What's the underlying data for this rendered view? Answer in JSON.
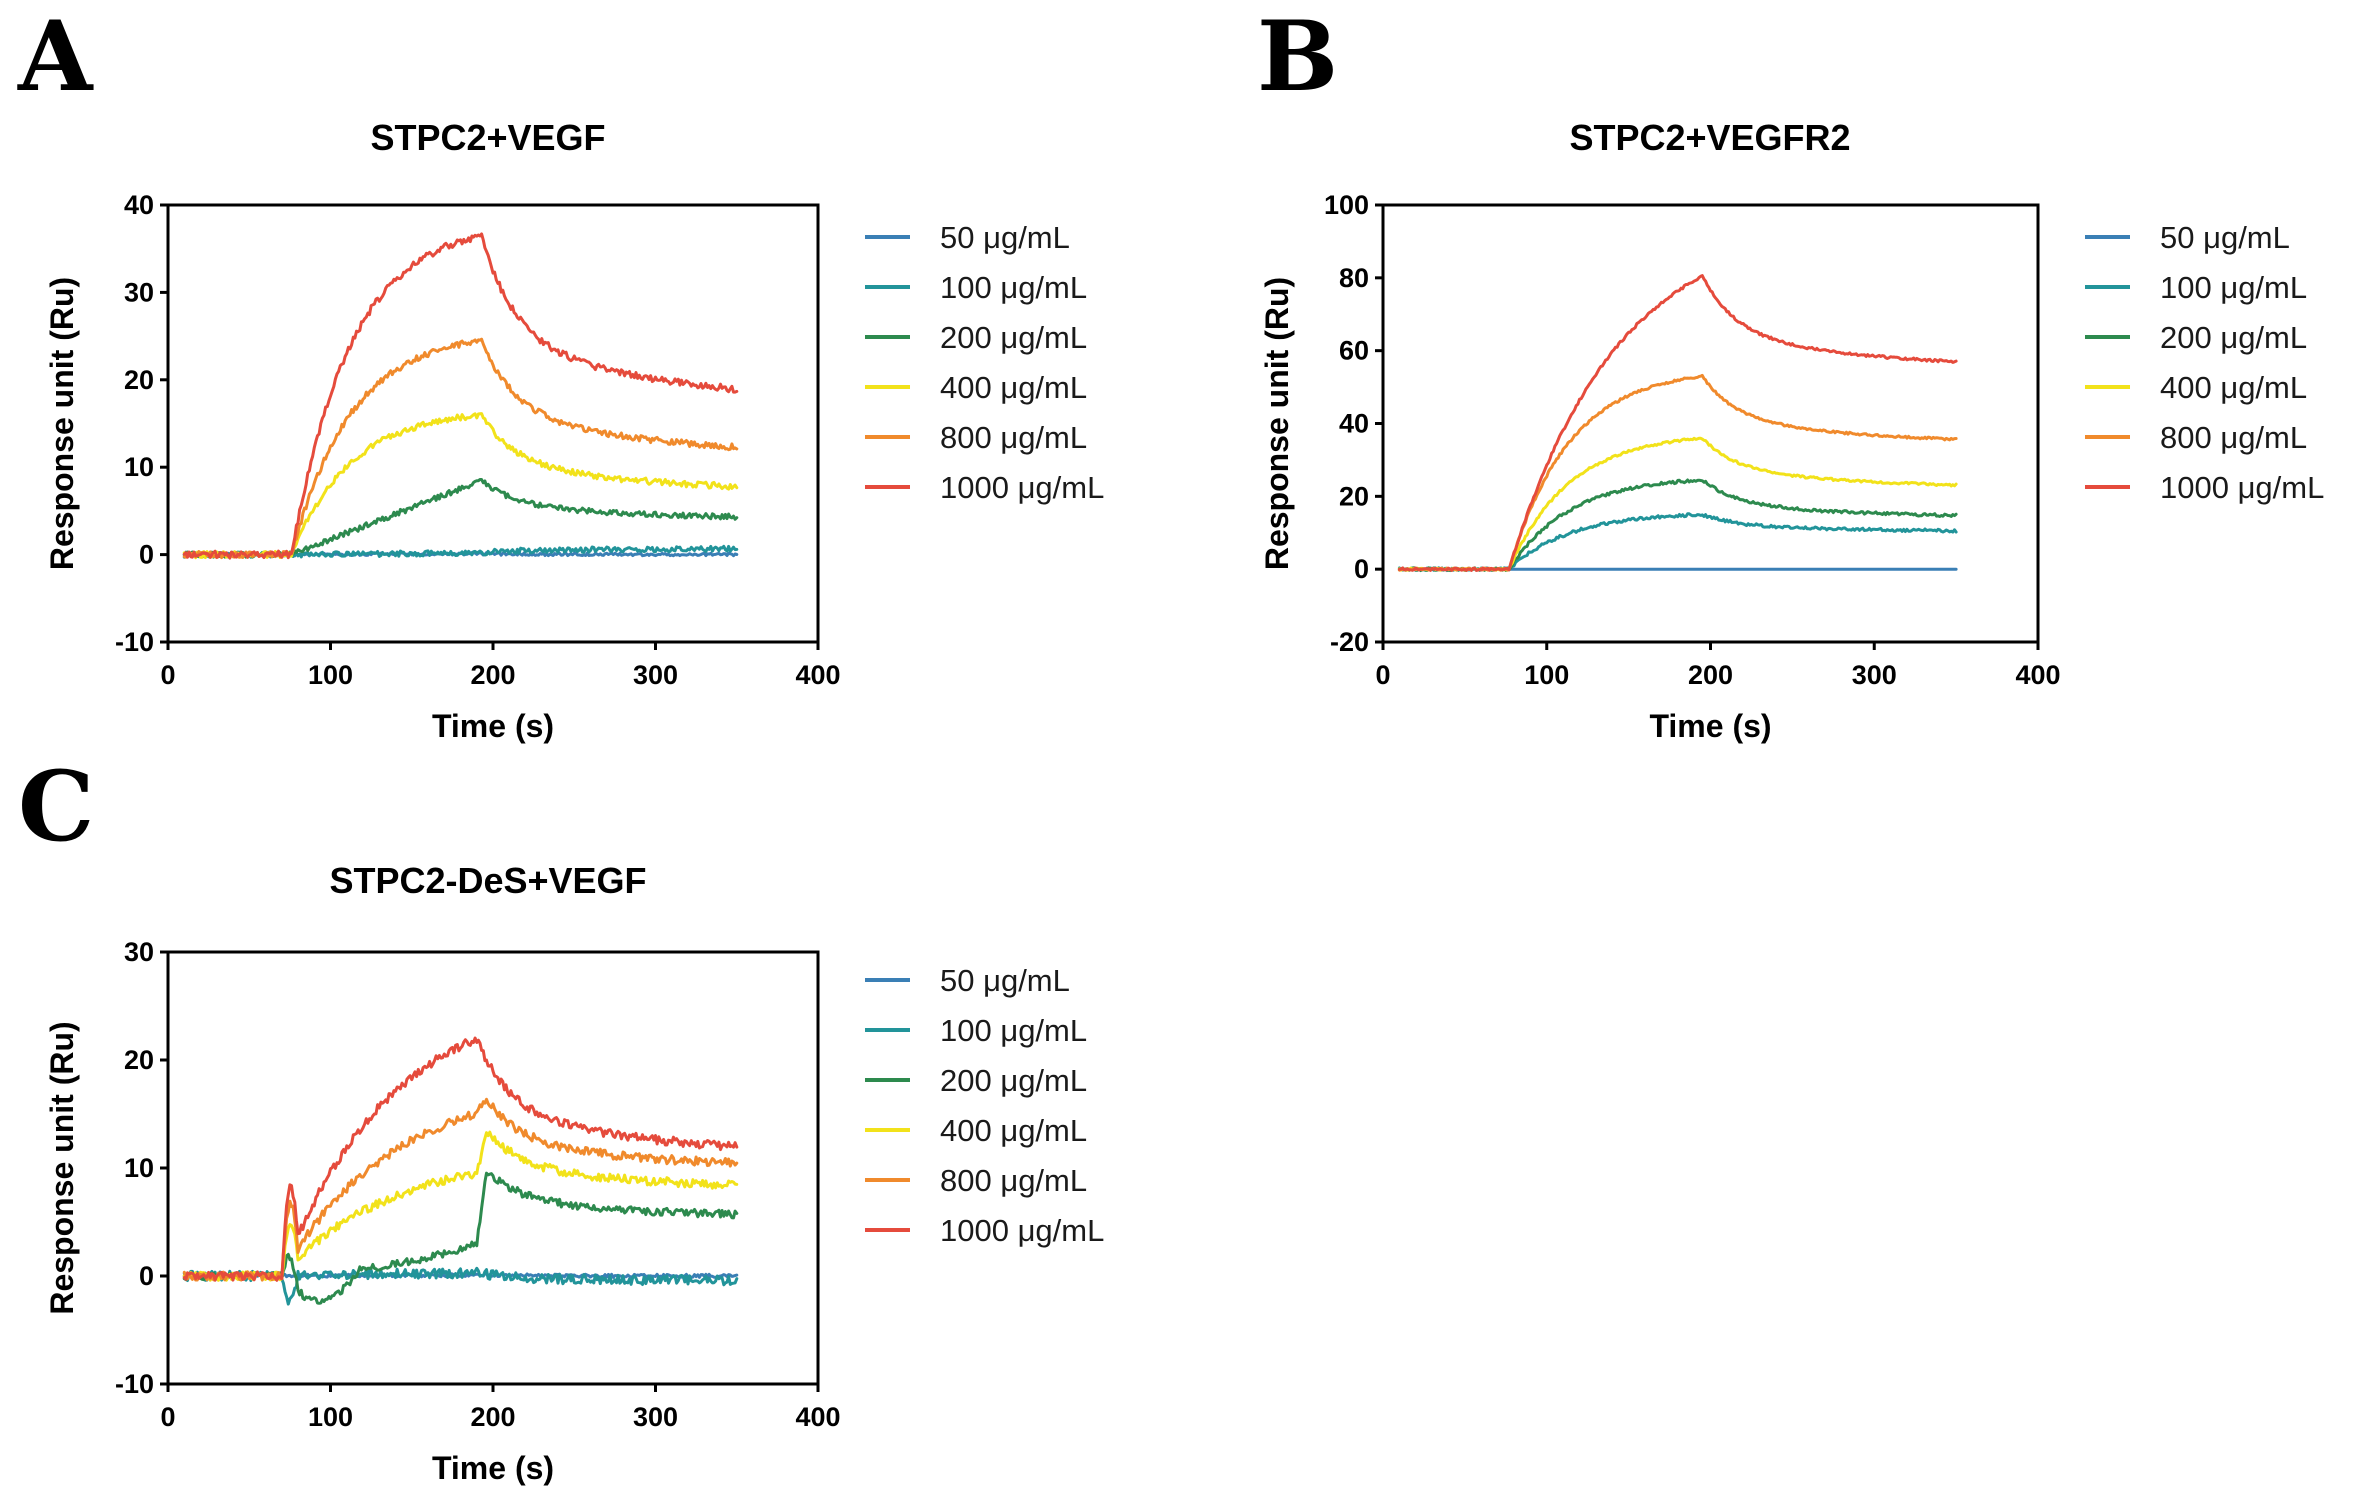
{
  "chart_data": [
    {
      "panel_letter": "A",
      "type": "line",
      "title": "STPC2+VEGF",
      "xlabel": "Time (s)",
      "ylabel": "Response unit (Ru)",
      "xlim": [
        0,
        400
      ],
      "ylim": [
        -10,
        40
      ],
      "xticks": [
        0,
        100,
        200,
        300,
        400
      ],
      "yticks": [
        -10,
        0,
        10,
        20,
        30,
        40
      ],
      "grid": false,
      "legend_position": "right",
      "x_range": [
        10,
        350
      ],
      "injection_start": 76,
      "injection_end": 193,
      "series": [
        {
          "name": "50 μg/mL",
          "color": "#3a7fb5",
          "peak": 0.1,
          "plateau_end": 0.0,
          "assoc_shape": "linear",
          "noise": 0.15,
          "spike": 0
        },
        {
          "name": "100 μg/mL",
          "color": "#22949a",
          "peak": 0.2,
          "plateau_end": 0.7,
          "assoc_shape": "linear",
          "noise": 0.3,
          "spike": 0
        },
        {
          "name": "200 μg/mL",
          "color": "#2d8a4e",
          "peak": 8.5,
          "plateau_end": 3.8,
          "assoc_shape": "linear",
          "noise": 0.3,
          "spike": 0
        },
        {
          "name": "400 μg/mL",
          "color": "#f2e21a",
          "peak": 16.0,
          "plateau_end": 6.8,
          "assoc_shape": "fast",
          "noise": 0.35,
          "spike": 0
        },
        {
          "name": "800 μg/mL",
          "color": "#f08a2c",
          "peak": 24.5,
          "plateau_end": 10.8,
          "assoc_shape": "fast",
          "noise": 0.35,
          "spike": 0
        },
        {
          "name": "1000 μg/mL",
          "color": "#e54b3c",
          "peak": 36.5,
          "plateau_end": 16.8,
          "assoc_shape": "fast",
          "noise": 0.4,
          "spike": 0
        }
      ]
    },
    {
      "panel_letter": "B",
      "type": "line",
      "title": "STPC2+VEGFR2",
      "xlabel": "Time (s)",
      "ylabel": "Response unit (Ru)",
      "xlim": [
        0,
        400
      ],
      "ylim": [
        -20,
        100
      ],
      "xticks": [
        0,
        100,
        200,
        300,
        400
      ],
      "yticks": [
        -20,
        0,
        20,
        40,
        60,
        80,
        100
      ],
      "grid": false,
      "legend_position": "right",
      "x_range": [
        10,
        350
      ],
      "injection_start": 77,
      "injection_end": 195,
      "series": [
        {
          "name": "50 μg/mL",
          "color": "#3a7fb5",
          "peak": 0.0,
          "plateau_end": 0.0,
          "assoc_shape": "linear",
          "noise": 0.0,
          "spike": 0
        },
        {
          "name": "100 μg/mL",
          "color": "#22949a",
          "peak": 15.0,
          "plateau_end": 10.0,
          "assoc_shape": "fast",
          "noise": 0.4,
          "spike": 0
        },
        {
          "name": "200 μg/mL",
          "color": "#2d8a4e",
          "peak": 24.5,
          "plateau_end": 13.5,
          "assoc_shape": "fast",
          "noise": 0.4,
          "spike": 0
        },
        {
          "name": "400 μg/mL",
          "color": "#f2e21a",
          "peak": 36.0,
          "plateau_end": 21.5,
          "assoc_shape": "fast",
          "noise": 0.3,
          "spike": 0
        },
        {
          "name": "800 μg/mL",
          "color": "#f08a2c",
          "peak": 53.0,
          "plateau_end": 33.5,
          "assoc_shape": "fast",
          "noise": 0.3,
          "spike": 0
        },
        {
          "name": "1000 μg/mL",
          "color": "#e54b3c",
          "peak": 80.5,
          "plateau_end": 54.0,
          "assoc_shape": "medium",
          "noise": 0.35,
          "spike": 0
        }
      ]
    },
    {
      "panel_letter": "C",
      "type": "line",
      "title": "STPC2-DeS+VEGF",
      "xlabel": "Time (s)",
      "ylabel": "Response unit (Ru)",
      "xlim": [
        0,
        400
      ],
      "ylim": [
        -10,
        30
      ],
      "xticks": [
        0,
        100,
        200,
        300,
        400
      ],
      "yticks": [
        -10,
        0,
        10,
        20,
        30
      ],
      "grid": false,
      "legend_position": "right",
      "x_range": [
        10,
        350
      ],
      "injection_start": 70,
      "injection_end": 190,
      "series": [
        {
          "name": "50 μg/mL",
          "color": "#3a7fb5",
          "peak": 0.1,
          "plateau_end": 0.0,
          "assoc_shape": "linear",
          "noise": 0.15,
          "spike": 0
        },
        {
          "name": "100 μg/mL",
          "color": "#22949a",
          "peak": 0.3,
          "plateau_end": -0.5,
          "assoc_shape": "linear",
          "noise": 0.45,
          "spike": -2.5
        },
        {
          "name": "200 μg/mL",
          "color": "#2d8a4e",
          "peak": 3.0,
          "plateau_end": 5.2,
          "assoc_shape": "dip",
          "noise": 0.35,
          "spike": 2.5,
          "post_jump": 9.8
        },
        {
          "name": "400 μg/mL",
          "color": "#f2e21a",
          "peak": 9.5,
          "plateau_end": 7.8,
          "assoc_shape": "medium",
          "noise": 0.4,
          "spike": 4.0,
          "post_jump": 13.5
        },
        {
          "name": "800 μg/mL",
          "color": "#f08a2c",
          "peak": 15.0,
          "plateau_end": 9.7,
          "assoc_shape": "medium",
          "noise": 0.4,
          "spike": 5.5,
          "post_jump": 16.5
        },
        {
          "name": "1000 μg/mL",
          "color": "#e54b3c",
          "peak": 22.0,
          "plateau_end": 10.8,
          "assoc_shape": "medium",
          "noise": 0.4,
          "spike": 6.2
        }
      ]
    }
  ]
}
